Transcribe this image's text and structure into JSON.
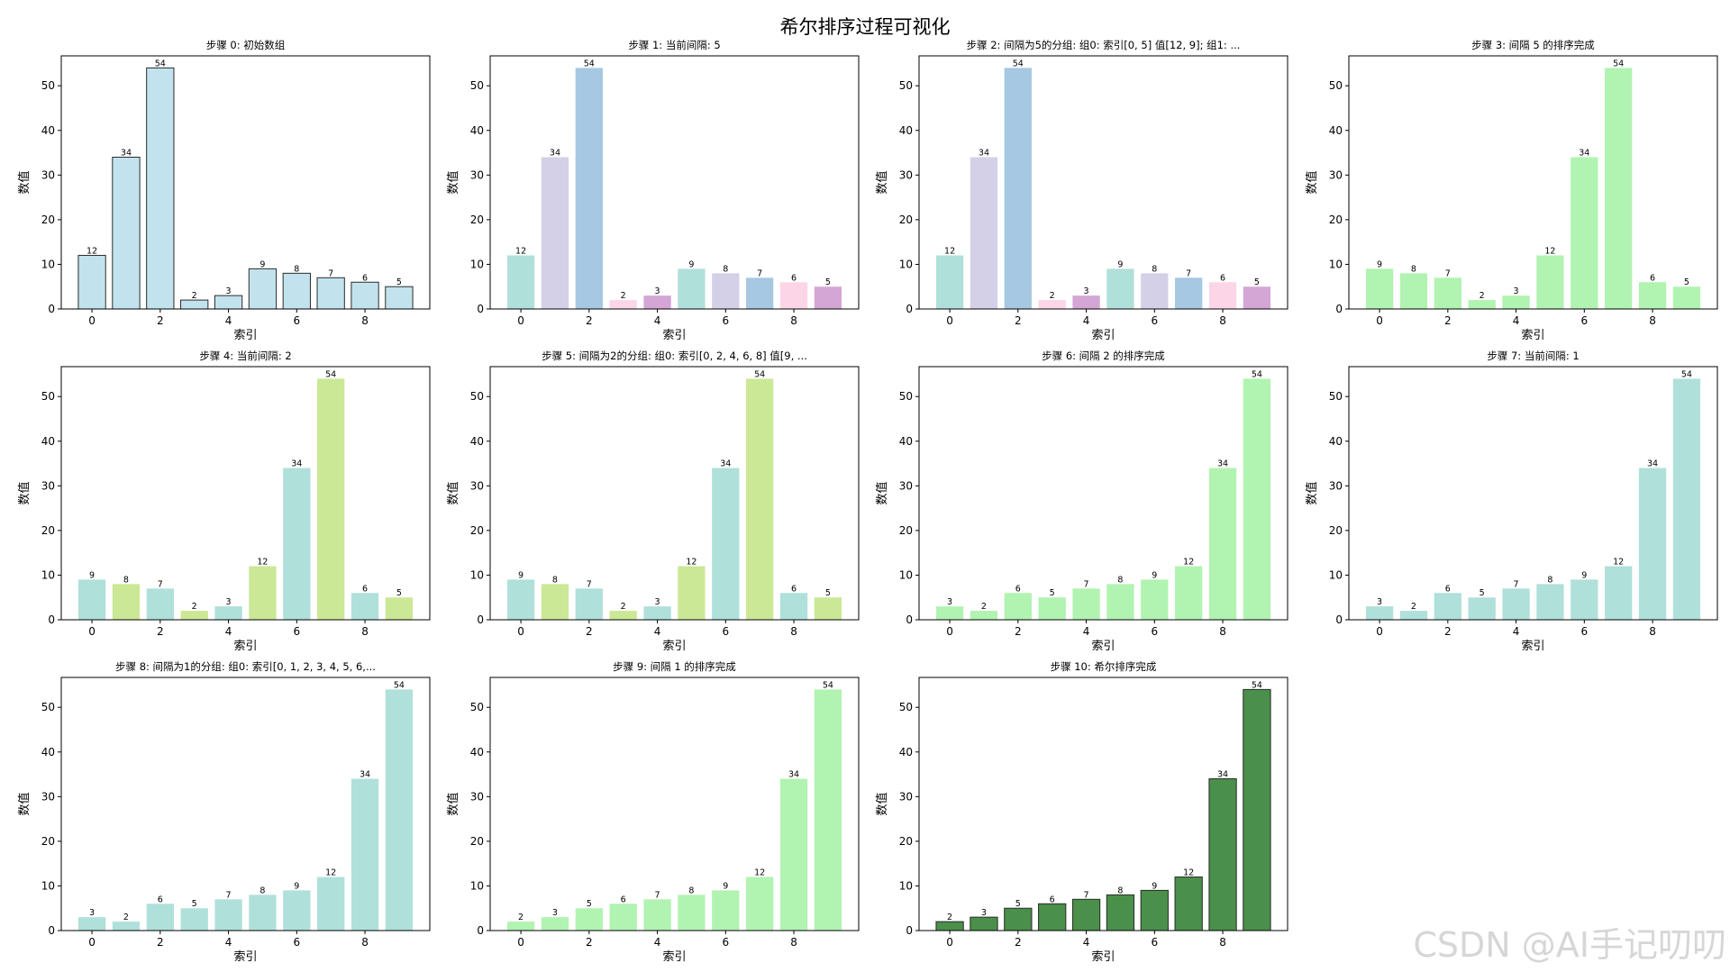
{
  "figure_title": "希尔排序过程可视化",
  "watermark": "CSDN @AI手记叨叨",
  "colors": {
    "light_blue": "#c2e3ee",
    "teal": "#b0e0da",
    "lavender": "#d4d0e8",
    "steel_blue": "#a6c8e2",
    "pink": "#fcd6e6",
    "orchid": "#d4a6d6",
    "light_green": "#b1f3b1",
    "yellow_green": "#cbe896",
    "dark_green": "#4a8f4a"
  },
  "chart_data": [
    {
      "type": "bar",
      "title": "步骤 0: 初始数组",
      "xlabel": "索引",
      "ylabel": "数值",
      "categories": [
        0,
        1,
        2,
        3,
        4,
        5,
        6,
        7,
        8,
        9
      ],
      "values": [
        12,
        34,
        54,
        2,
        3,
        9,
        8,
        7,
        6,
        5
      ],
      "bar_colors": [
        "light_blue",
        "light_blue",
        "light_blue",
        "light_blue",
        "light_blue",
        "light_blue",
        "light_blue",
        "light_blue",
        "light_blue",
        "light_blue"
      ],
      "edge": true,
      "ylim": [
        0,
        56.7
      ],
      "yticks": [
        0,
        10,
        20,
        30,
        40,
        50
      ],
      "xticks": [
        0,
        2,
        4,
        6,
        8
      ]
    },
    {
      "type": "bar",
      "title": "步骤 1: 当前间隔: 5",
      "xlabel": "索引",
      "ylabel": "数值",
      "categories": [
        0,
        1,
        2,
        3,
        4,
        5,
        6,
        7,
        8,
        9
      ],
      "values": [
        12,
        34,
        54,
        2,
        3,
        9,
        8,
        7,
        6,
        5
      ],
      "bar_colors": [
        "teal",
        "lavender",
        "steel_blue",
        "pink",
        "orchid",
        "teal",
        "lavender",
        "steel_blue",
        "pink",
        "orchid"
      ],
      "edge": false,
      "ylim": [
        0,
        56.7
      ],
      "yticks": [
        0,
        10,
        20,
        30,
        40,
        50
      ],
      "xticks": [
        0,
        2,
        4,
        6,
        8
      ]
    },
    {
      "type": "bar",
      "title": "步骤 2: 间隔为5的分组: 组0: 索引[0, 5] 值[12, 9]; 组1: ...",
      "xlabel": "索引",
      "ylabel": "数值",
      "categories": [
        0,
        1,
        2,
        3,
        4,
        5,
        6,
        7,
        8,
        9
      ],
      "values": [
        12,
        34,
        54,
        2,
        3,
        9,
        8,
        7,
        6,
        5
      ],
      "bar_colors": [
        "teal",
        "lavender",
        "steel_blue",
        "pink",
        "orchid",
        "teal",
        "lavender",
        "steel_blue",
        "pink",
        "orchid"
      ],
      "edge": false,
      "ylim": [
        0,
        56.7
      ],
      "yticks": [
        0,
        10,
        20,
        30,
        40,
        50
      ],
      "xticks": [
        0,
        2,
        4,
        6,
        8
      ]
    },
    {
      "type": "bar",
      "title": "步骤 3: 间隔 5 的排序完成",
      "xlabel": "索引",
      "ylabel": "数值",
      "categories": [
        0,
        1,
        2,
        3,
        4,
        5,
        6,
        7,
        8,
        9
      ],
      "values": [
        9,
        8,
        7,
        2,
        3,
        12,
        34,
        54,
        6,
        5
      ],
      "bar_colors": [
        "light_green",
        "light_green",
        "light_green",
        "light_green",
        "light_green",
        "light_green",
        "light_green",
        "light_green",
        "light_green",
        "light_green"
      ],
      "edge": false,
      "ylim": [
        0,
        56.7
      ],
      "yticks": [
        0,
        10,
        20,
        30,
        40,
        50
      ],
      "xticks": [
        0,
        2,
        4,
        6,
        8
      ]
    },
    {
      "type": "bar",
      "title": "步骤 4: 当前间隔: 2",
      "xlabel": "索引",
      "ylabel": "数值",
      "categories": [
        0,
        1,
        2,
        3,
        4,
        5,
        6,
        7,
        8,
        9
      ],
      "values": [
        9,
        8,
        7,
        2,
        3,
        12,
        34,
        54,
        6,
        5
      ],
      "bar_colors": [
        "teal",
        "yellow_green",
        "teal",
        "yellow_green",
        "teal",
        "yellow_green",
        "teal",
        "yellow_green",
        "teal",
        "yellow_green"
      ],
      "edge": false,
      "ylim": [
        0,
        56.7
      ],
      "yticks": [
        0,
        10,
        20,
        30,
        40,
        50
      ],
      "xticks": [
        0,
        2,
        4,
        6,
        8
      ]
    },
    {
      "type": "bar",
      "title": "步骤 5: 间隔为2的分组: 组0: 索引[0, 2, 4, 6, 8] 值[9, ...",
      "xlabel": "索引",
      "ylabel": "数值",
      "categories": [
        0,
        1,
        2,
        3,
        4,
        5,
        6,
        7,
        8,
        9
      ],
      "values": [
        9,
        8,
        7,
        2,
        3,
        12,
        34,
        54,
        6,
        5
      ],
      "bar_colors": [
        "teal",
        "yellow_green",
        "teal",
        "yellow_green",
        "teal",
        "yellow_green",
        "teal",
        "yellow_green",
        "teal",
        "yellow_green"
      ],
      "edge": false,
      "ylim": [
        0,
        56.7
      ],
      "yticks": [
        0,
        10,
        20,
        30,
        40,
        50
      ],
      "xticks": [
        0,
        2,
        4,
        6,
        8
      ]
    },
    {
      "type": "bar",
      "title": "步骤 6: 间隔 2 的排序完成",
      "xlabel": "索引",
      "ylabel": "数值",
      "categories": [
        0,
        1,
        2,
        3,
        4,
        5,
        6,
        7,
        8,
        9
      ],
      "values": [
        3,
        2,
        6,
        5,
        7,
        8,
        9,
        12,
        34,
        54
      ],
      "bar_colors": [
        "light_green",
        "light_green",
        "light_green",
        "light_green",
        "light_green",
        "light_green",
        "light_green",
        "light_green",
        "light_green",
        "light_green"
      ],
      "edge": false,
      "ylim": [
        0,
        56.7
      ],
      "yticks": [
        0,
        10,
        20,
        30,
        40,
        50
      ],
      "xticks": [
        0,
        2,
        4,
        6,
        8
      ]
    },
    {
      "type": "bar",
      "title": "步骤 7: 当前间隔: 1",
      "xlabel": "索引",
      "ylabel": "数值",
      "categories": [
        0,
        1,
        2,
        3,
        4,
        5,
        6,
        7,
        8,
        9
      ],
      "values": [
        3,
        2,
        6,
        5,
        7,
        8,
        9,
        12,
        34,
        54
      ],
      "bar_colors": [
        "teal",
        "teal",
        "teal",
        "teal",
        "teal",
        "teal",
        "teal",
        "teal",
        "teal",
        "teal"
      ],
      "edge": false,
      "ylim": [
        0,
        56.7
      ],
      "yticks": [
        0,
        10,
        20,
        30,
        40,
        50
      ],
      "xticks": [
        0,
        2,
        4,
        6,
        8
      ]
    },
    {
      "type": "bar",
      "title": "步骤 8: 间隔为1的分组: 组0: 索引[0, 1, 2, 3, 4, 5, 6,...",
      "xlabel": "索引",
      "ylabel": "数值",
      "categories": [
        0,
        1,
        2,
        3,
        4,
        5,
        6,
        7,
        8,
        9
      ],
      "values": [
        3,
        2,
        6,
        5,
        7,
        8,
        9,
        12,
        34,
        54
      ],
      "bar_colors": [
        "teal",
        "teal",
        "teal",
        "teal",
        "teal",
        "teal",
        "teal",
        "teal",
        "teal",
        "teal"
      ],
      "edge": false,
      "ylim": [
        0,
        56.7
      ],
      "yticks": [
        0,
        10,
        20,
        30,
        40,
        50
      ],
      "xticks": [
        0,
        2,
        4,
        6,
        8
      ]
    },
    {
      "type": "bar",
      "title": "步骤 9: 间隔 1 的排序完成",
      "xlabel": "索引",
      "ylabel": "数值",
      "categories": [
        0,
        1,
        2,
        3,
        4,
        5,
        6,
        7,
        8,
        9
      ],
      "values": [
        2,
        3,
        5,
        6,
        7,
        8,
        9,
        12,
        34,
        54
      ],
      "bar_colors": [
        "light_green",
        "light_green",
        "light_green",
        "light_green",
        "light_green",
        "light_green",
        "light_green",
        "light_green",
        "light_green",
        "light_green"
      ],
      "edge": false,
      "ylim": [
        0,
        56.7
      ],
      "yticks": [
        0,
        10,
        20,
        30,
        40,
        50
      ],
      "xticks": [
        0,
        2,
        4,
        6,
        8
      ]
    },
    {
      "type": "bar",
      "title": "步骤 10: 希尔排序完成",
      "xlabel": "索引",
      "ylabel": "数值",
      "categories": [
        0,
        1,
        2,
        3,
        4,
        5,
        6,
        7,
        8,
        9
      ],
      "values": [
        2,
        3,
        5,
        6,
        7,
        8,
        9,
        12,
        34,
        54
      ],
      "bar_colors": [
        "dark_green",
        "dark_green",
        "dark_green",
        "dark_green",
        "dark_green",
        "dark_green",
        "dark_green",
        "dark_green",
        "dark_green",
        "dark_green"
      ],
      "edge": true,
      "ylim": [
        0,
        56.7
      ],
      "yticks": [
        0,
        10,
        20,
        30,
        40,
        50
      ],
      "xticks": [
        0,
        2,
        4,
        6,
        8
      ]
    }
  ]
}
